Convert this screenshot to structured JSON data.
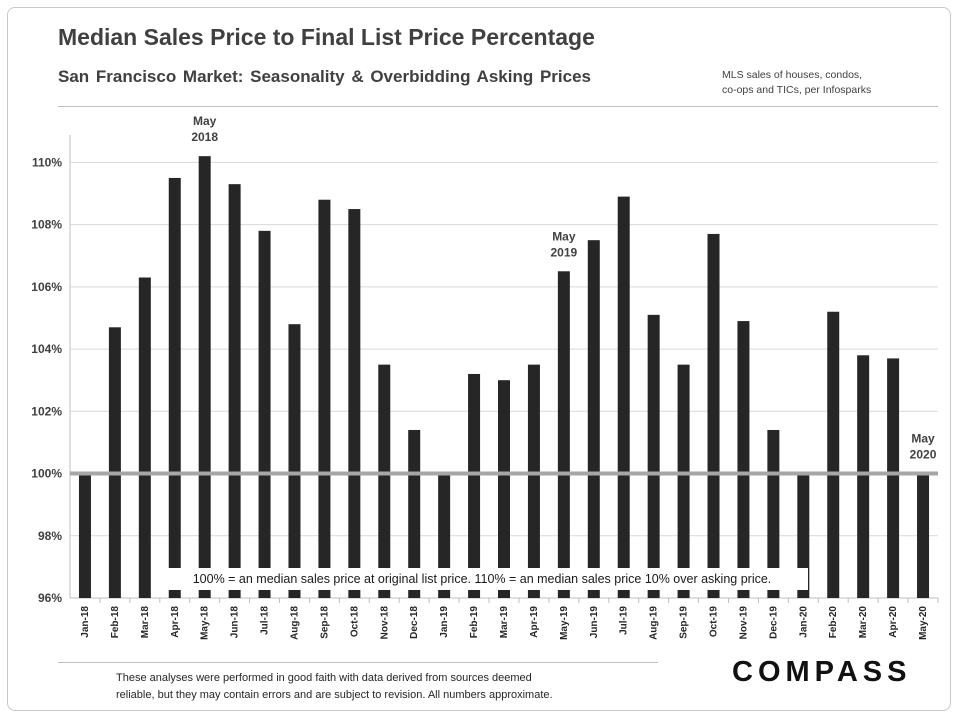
{
  "header": {
    "title": "Median Sales Price to Final List Price Percentage",
    "subtitle": "San Francisco Market: Seasonality & Overbidding Asking Prices",
    "source_line1": "MLS sales of houses, condos,",
    "source_line2": "co-ops and TICs, per Infosparks"
  },
  "footer": {
    "disclaimer_line1": "These analyses  were performed in good faith with data derived from sources deemed",
    "disclaimer_line2": "reliable, but they may contain errors and are subject to revision. All numbers approximate.",
    "brand": "COMPASS"
  },
  "chart_data": {
    "type": "bar",
    "title": "Median Sales Price to Final List Price Percentage",
    "xlabel": "",
    "ylabel": "",
    "ylim": [
      96,
      110.8
    ],
    "yticks": [
      96,
      98,
      100,
      102,
      104,
      106,
      108,
      110
    ],
    "ytick_labels": [
      "96%",
      "98%",
      "100%",
      "102%",
      "104%",
      "106%",
      "108%",
      "110%"
    ],
    "grid": true,
    "baseline": 100,
    "categories": [
      "Jan-18",
      "Feb-18",
      "Mar-18",
      "Apr-18",
      "May-18",
      "Jun-18",
      "Jul-18",
      "Aug-18",
      "Sep-18",
      "Oct-18",
      "Nov-18",
      "Dec-18",
      "Jan-19",
      "Feb-19",
      "Mar-19",
      "Apr-19",
      "May-19",
      "Jun-19",
      "Jul-19",
      "Aug-19",
      "Sep-19",
      "Oct-19",
      "Nov-19",
      "Dec-19",
      "Jan-20",
      "Feb-20",
      "Mar-20",
      "Apr-20",
      "May-20"
    ],
    "values": [
      100.0,
      104.7,
      106.3,
      109.5,
      110.2,
      109.3,
      107.8,
      104.8,
      108.8,
      108.5,
      103.5,
      101.4,
      100.0,
      103.2,
      103.0,
      103.5,
      106.5,
      107.5,
      108.9,
      105.1,
      103.5,
      107.7,
      104.9,
      101.4,
      100.0,
      105.2,
      103.8,
      103.7,
      100.0
    ],
    "annotations": [
      {
        "index": 4,
        "line1": "May",
        "line2": "2018"
      },
      {
        "index": 16,
        "line1": "May",
        "line2": "2019"
      },
      {
        "index": 28,
        "line1": "May",
        "line2": "2020"
      }
    ],
    "note": "100% = an median sales price at original list price. 110% = an median sales price 10% over asking price."
  }
}
